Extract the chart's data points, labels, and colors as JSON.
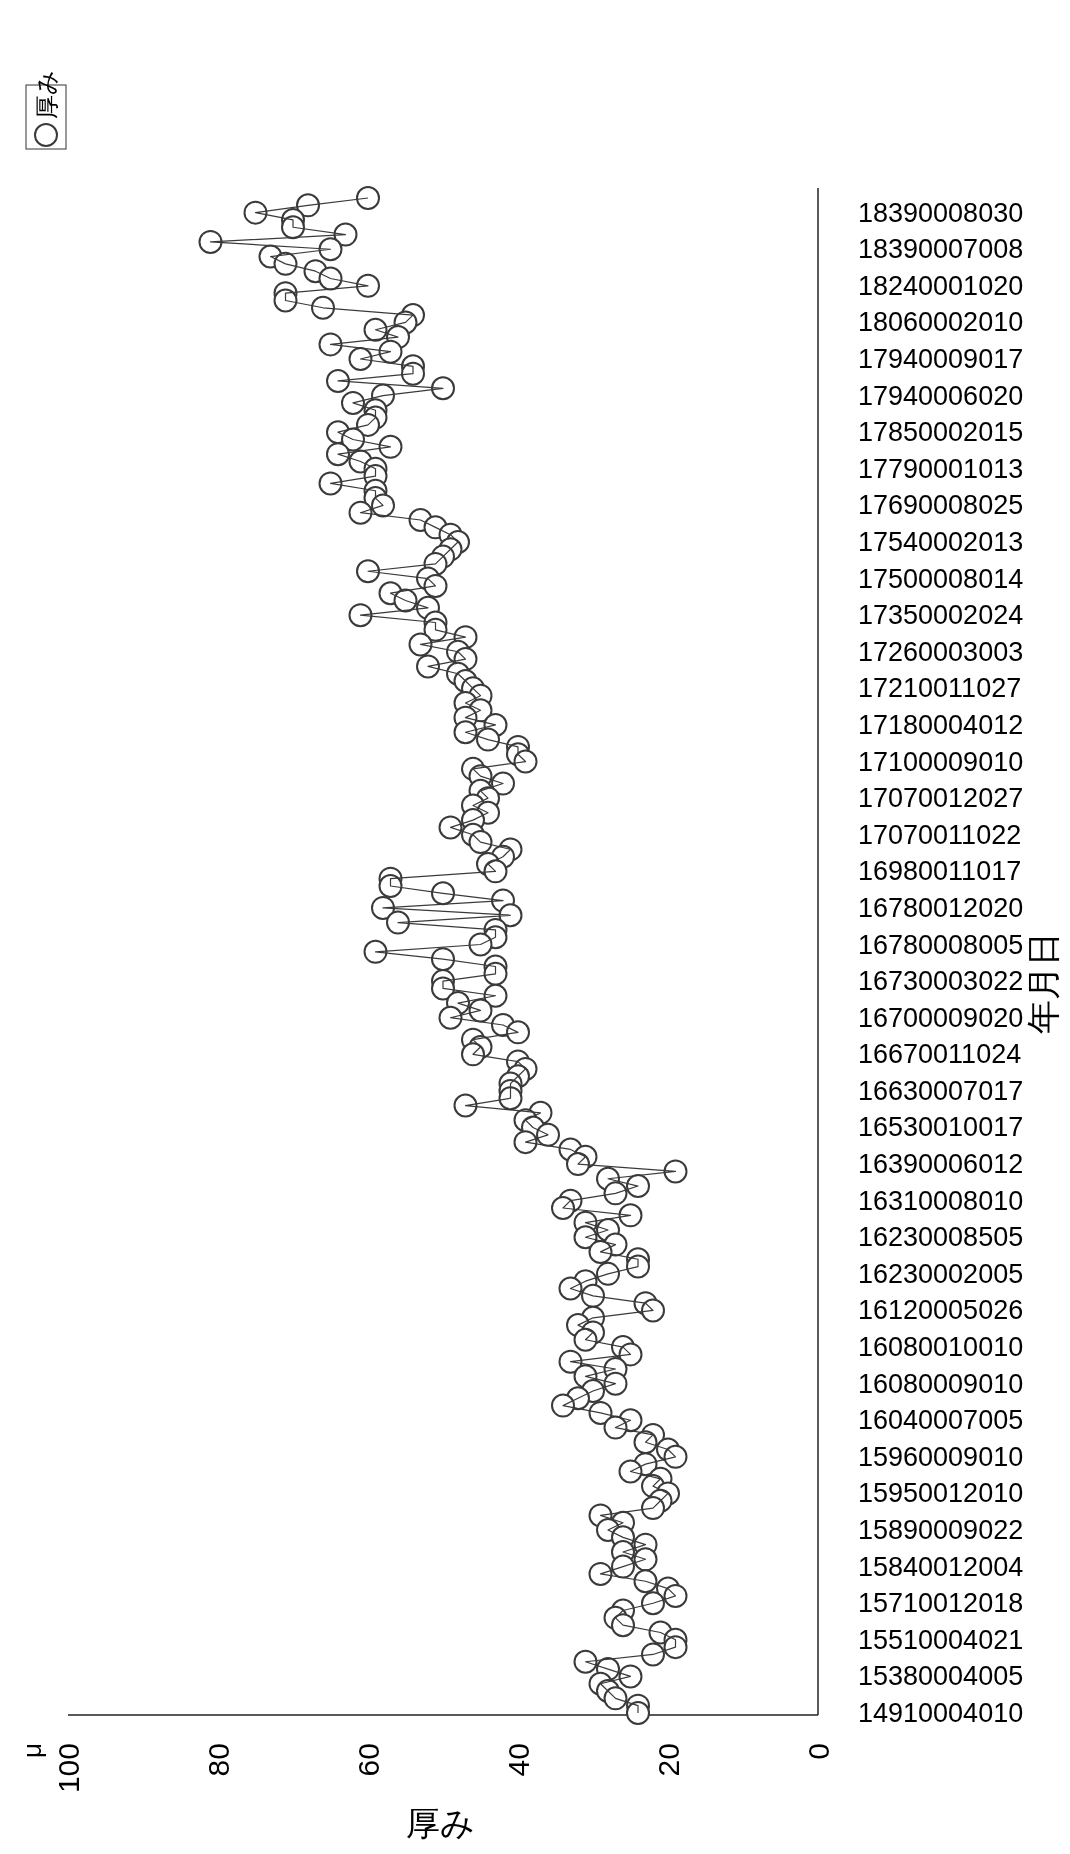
{
  "chart_data": {
    "type": "line",
    "orientation": "horizontal",
    "xlabel": "厚み",
    "ylabel": "年月日",
    "annotations": [
      "μ"
    ],
    "legend": "top left",
    "marker": "circle",
    "line_style": "solid",
    "grid": false,
    "xlim": [
      100,
      0
    ],
    "xticks": [
      100,
      80,
      60,
      40,
      20,
      0
    ],
    "categories": [
      null,
      null,
      "18390008030",
      null,
      null,
      null,
      null,
      "18390007008",
      null,
      null,
      null,
      null,
      "18240001020",
      null,
      null,
      null,
      null,
      "18060002010",
      null,
      null,
      null,
      null,
      "17940009017",
      null,
      null,
      null,
      null,
      "17940006020",
      null,
      null,
      null,
      null,
      "17850002015",
      null,
      null,
      null,
      null,
      "17790001013",
      null,
      null,
      null,
      null,
      "17690008025",
      null,
      null,
      null,
      null,
      "17540002013",
      null,
      null,
      null,
      null,
      "17500008014",
      null,
      null,
      null,
      null,
      "17350002024",
      null,
      null,
      null,
      null,
      "17260003003",
      null,
      null,
      null,
      null,
      "17210011027",
      null,
      null,
      null,
      null,
      "17180004012",
      null,
      null,
      null,
      null,
      "17100009010",
      null,
      null,
      null,
      null,
      "17070012027",
      null,
      null,
      null,
      null,
      "17070011022",
      null,
      null,
      null,
      null,
      "16980011017",
      null,
      null,
      null,
      null,
      "16780012020",
      null,
      null,
      null,
      null,
      "16780008005",
      null,
      null,
      null,
      null,
      "16730003022",
      null,
      null,
      null,
      null,
      "16700009020",
      null,
      null,
      null,
      null,
      "16670011024",
      null,
      null,
      null,
      null,
      "16630007017",
      null,
      null,
      null,
      null,
      "16530010017",
      null,
      null,
      null,
      null,
      "16390006012",
      null,
      null,
      null,
      null,
      "16310008010",
      null,
      null,
      null,
      null,
      "16230008505",
      null,
      null,
      null,
      null,
      "16230002005",
      null,
      null,
      null,
      null,
      "16120005026",
      null,
      null,
      null,
      null,
      "16080010010",
      null,
      null,
      null,
      null,
      "16080009010",
      null,
      null,
      null,
      null,
      "16040007005",
      null,
      null,
      null,
      null,
      "15960009010",
      null,
      null,
      null,
      null,
      "15950012010",
      null,
      null,
      null,
      null,
      "15890009022",
      null,
      null,
      null,
      null,
      "15840012004",
      null,
      null,
      null,
      null,
      "15710012018",
      null,
      null,
      null,
      null,
      "15510004021",
      null,
      null,
      null,
      null,
      "15380004005",
      null,
      null,
      null,
      null,
      "14910004010"
    ],
    "series": [
      {
        "name": "厚み",
        "color": "#3a3a3a",
        "values": [
          60,
          68,
          75,
          70,
          70,
          63,
          81,
          65,
          73,
          71,
          67,
          65,
          60,
          71,
          71,
          66,
          54,
          55,
          59,
          56,
          65,
          57,
          61,
          54,
          54,
          64,
          50,
          58,
          62,
          59,
          59,
          60,
          64,
          62,
          57,
          64,
          61,
          59,
          59,
          65,
          59,
          59,
          58,
          61,
          53,
          51,
          49,
          48,
          49,
          50,
          51,
          60,
          52,
          51,
          57,
          55,
          52,
          61,
          51,
          51,
          47,
          53,
          48,
          47,
          52,
          48,
          47,
          46,
          45,
          47,
          45,
          47,
          43,
          47,
          44,
          40,
          40,
          39,
          46,
          45,
          42,
          45,
          44,
          46,
          44,
          46,
          49,
          46,
          45,
          41,
          42,
          44,
          43,
          57,
          57,
          50,
          42,
          58,
          41,
          56,
          43,
          43,
          45,
          59,
          50,
          43,
          43,
          50,
          50,
          43,
          48,
          45,
          49,
          42,
          40,
          46,
          45,
          46,
          40,
          39,
          40,
          41,
          41,
          41,
          47,
          37,
          39,
          38,
          36,
          39,
          33,
          31,
          32,
          19,
          28,
          24,
          27,
          33,
          34,
          25,
          31,
          28,
          31,
          27,
          29,
          24,
          24,
          28,
          31,
          33,
          30,
          23,
          22,
          30,
          32,
          30,
          31,
          26,
          25,
          33,
          27,
          31,
          27,
          30,
          32,
          34,
          29,
          25,
          27,
          22,
          23,
          20,
          19,
          23,
          25,
          21,
          22,
          20,
          21,
          22,
          29,
          26,
          28,
          26,
          23,
          26,
          23,
          26,
          29,
          23,
          20,
          19,
          22,
          26,
          27,
          26,
          21,
          19,
          19,
          22,
          31,
          28,
          25,
          29,
          28,
          27,
          24,
          24
        ]
      }
    ]
  }
}
